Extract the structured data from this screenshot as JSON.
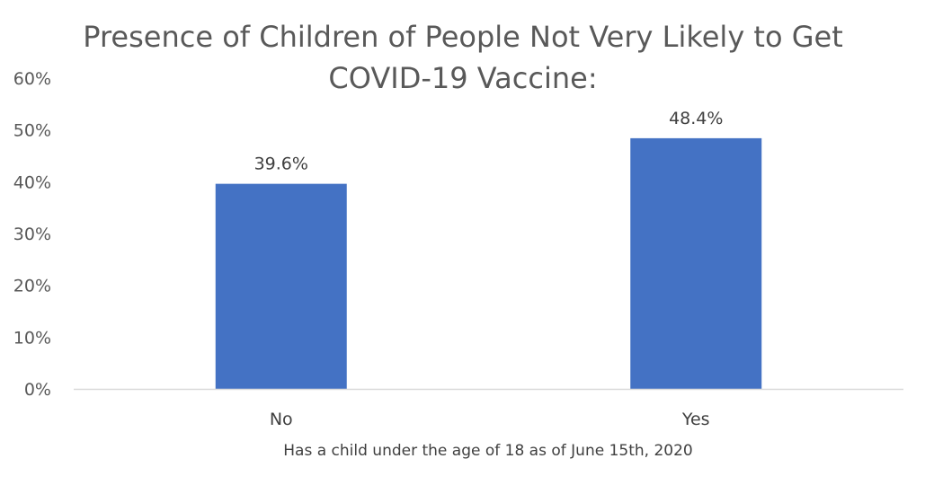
{
  "chart_data": {
    "type": "bar",
    "title_lines": [
      "Presence of Children of People Not Very Likely to Get",
      "COVID-19 Vaccine:"
    ],
    "categories": [
      "No",
      "Yes"
    ],
    "values": [
      39.6,
      48.4
    ],
    "data_labels": [
      "39.6%",
      "48.4%"
    ],
    "xlabel": "Has a child under the age of 18 as of June 15th, 2020",
    "ylabel": "",
    "ylim": [
      0,
      60
    ],
    "yticks": [
      0,
      10,
      20,
      30,
      40,
      50,
      60
    ],
    "ytick_labels": [
      "0%",
      "10%",
      "20%",
      "30%",
      "40%",
      "50%",
      "60%"
    ],
    "gridlines": false,
    "legend": "none",
    "bar_color": "#4472C4",
    "axis_color": "#D9D9D9"
  }
}
